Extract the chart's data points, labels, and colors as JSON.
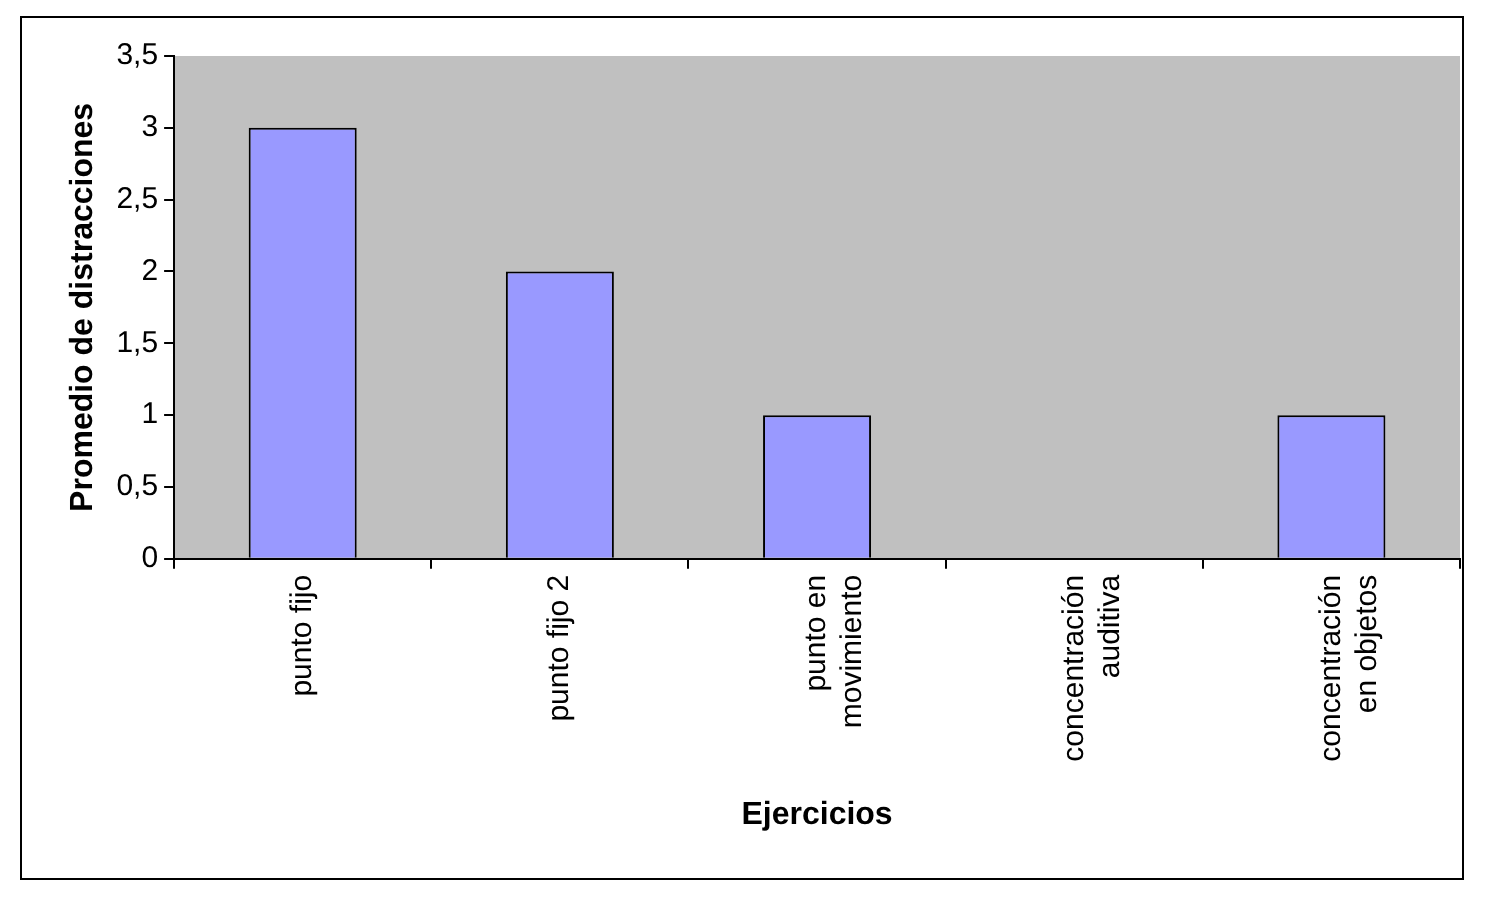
{
  "chart_data": {
    "type": "bar",
    "xlabel": "Ejercicios",
    "ylabel": "Promedio de distracciones",
    "categories": [
      "punto fijo",
      "punto fijo 2",
      "punto en movimiento",
      "concentración auditiva",
      "concentración en objetos"
    ],
    "values": [
      3,
      2,
      1,
      0,
      1
    ],
    "color": "#9999ff",
    "ylim": [
      0,
      3.5
    ],
    "yticks": [
      0,
      {
        "value": 0.5,
        "label": "0,5"
      },
      1,
      {
        "value": 1.5,
        "label": "1,5"
      },
      2,
      {
        "value": 2.5,
        "label": "2,5"
      },
      3,
      {
        "value": 3.5,
        "label": "3,5"
      }
    ],
    "grid": false,
    "legend": false
  }
}
